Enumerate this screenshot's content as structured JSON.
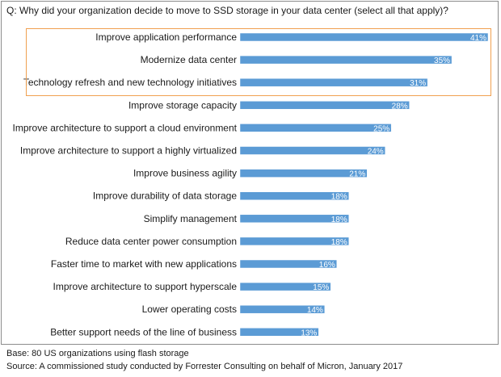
{
  "question": "Q:  Why did your organization decide to move to SSD storage in your data center (select all that apply)?",
  "footer": {
    "base": "Base:  80 US organizations using flash storage",
    "source": "Source:  A commissioned study conducted by Forrester Consulting on behalf of Micron, January 2017"
  },
  "colors": {
    "bar": "#5b9bd5",
    "bar_border": "#ffffff",
    "highlight_border": "#f0a050",
    "frame_border": "#8c8c8c"
  },
  "chart_data": {
    "type": "bar",
    "orientation": "horizontal",
    "categories": [
      "Improve application performance",
      "Modernize data center",
      "Technology refresh and new technology initiatives",
      "Improve storage capacity",
      "Improve architecture to support a cloud environment",
      "Improve architecture to support a highly virtualized",
      "Improve business agility",
      "Improve durability of data storage",
      "Simplify management",
      "Reduce data center power consumption",
      "Faster time to market with new applications",
      "Improve architecture to support hyperscale",
      "Lower operating costs",
      "Better support needs of the line of business"
    ],
    "values": [
      41,
      35,
      31,
      28,
      25,
      24,
      21,
      18,
      18,
      18,
      16,
      15,
      14,
      13
    ],
    "data_labels": [
      "41%",
      "35%",
      "31%",
      "28%",
      "25%",
      "24%",
      "21%",
      "18%",
      "18%",
      "18%",
      "16%",
      "15%",
      "14%",
      "13%"
    ],
    "xlim": [
      0,
      41
    ],
    "highlighted_categories": 3,
    "grid": false,
    "legend": "none",
    "title": "",
    "xlabel": "",
    "ylabel": ""
  }
}
